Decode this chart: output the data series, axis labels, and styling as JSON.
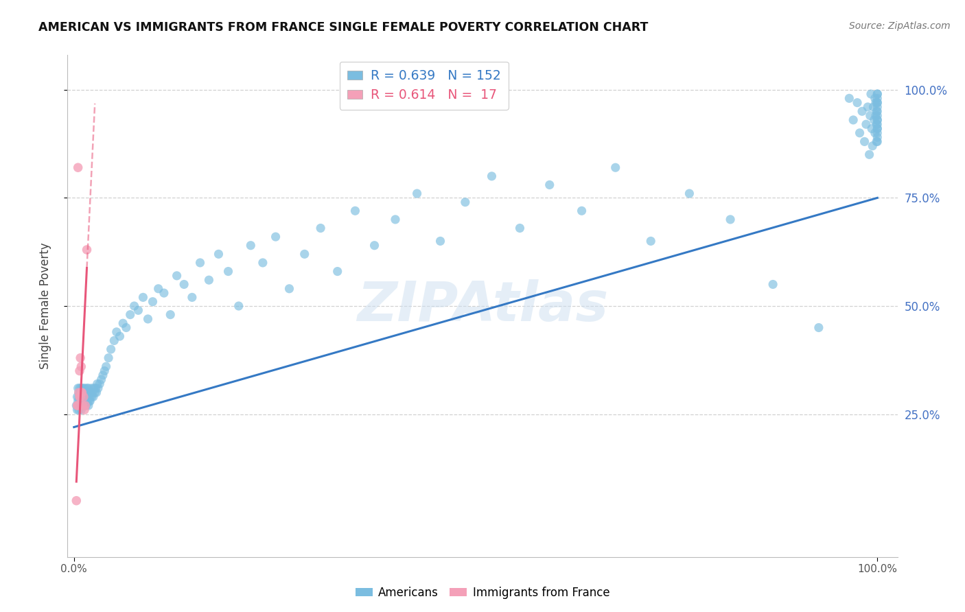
{
  "title": "AMERICAN VS IMMIGRANTS FROM FRANCE SINGLE FEMALE POVERTY CORRELATION CHART",
  "source": "Source: ZipAtlas.com",
  "ylabel": "Single Female Poverty",
  "legend_blue_R": "0.639",
  "legend_blue_N": "152",
  "legend_pink_R": "0.614",
  "legend_pink_N": " 17",
  "blue_color": "#7bbde0",
  "pink_color": "#f4a0b8",
  "blue_line_color": "#3579c4",
  "pink_line_color": "#e8567a",
  "blue_scatter_alpha": 0.65,
  "pink_scatter_alpha": 0.8,
  "marker_size_blue": 90,
  "marker_size_pink": 95,
  "blue_x": [
    0.003,
    0.004,
    0.004,
    0.005,
    0.005,
    0.005,
    0.006,
    0.006,
    0.006,
    0.007,
    0.007,
    0.007,
    0.008,
    0.008,
    0.008,
    0.008,
    0.009,
    0.009,
    0.009,
    0.009,
    0.01,
    0.01,
    0.01,
    0.01,
    0.011,
    0.011,
    0.011,
    0.012,
    0.012,
    0.012,
    0.013,
    0.013,
    0.013,
    0.014,
    0.014,
    0.014,
    0.015,
    0.015,
    0.015,
    0.016,
    0.016,
    0.016,
    0.017,
    0.017,
    0.018,
    0.018,
    0.018,
    0.019,
    0.019,
    0.02,
    0.02,
    0.021,
    0.022,
    0.022,
    0.023,
    0.024,
    0.025,
    0.026,
    0.027,
    0.028,
    0.029,
    0.03,
    0.032,
    0.034,
    0.036,
    0.038,
    0.04,
    0.043,
    0.046,
    0.05,
    0.053,
    0.057,
    0.061,
    0.065,
    0.07,
    0.075,
    0.08,
    0.086,
    0.092,
    0.098,
    0.105,
    0.112,
    0.12,
    0.128,
    0.137,
    0.147,
    0.157,
    0.168,
    0.18,
    0.192,
    0.205,
    0.22,
    0.235,
    0.251,
    0.268,
    0.287,
    0.307,
    0.328,
    0.35,
    0.374,
    0.4,
    0.427,
    0.456,
    0.487,
    0.52,
    0.555,
    0.592,
    0.632,
    0.674,
    0.718,
    0.766,
    0.817,
    0.87,
    0.927,
    0.965,
    0.97,
    0.975,
    0.978,
    0.981,
    0.984,
    0.986,
    0.988,
    0.99,
    0.991,
    0.992,
    0.993,
    0.994,
    0.995,
    0.996,
    0.997,
    0.997,
    0.998,
    0.998,
    0.999,
    0.999,
    0.999,
    1.0,
    1.0,
    1.0,
    1.0,
    1.0,
    1.0,
    1.0,
    1.0,
    1.0,
    1.0,
    1.0,
    1.0,
    1.0,
    1.0,
    1.0,
    1.0
  ],
  "blue_y": [
    0.27,
    0.26,
    0.29,
    0.28,
    0.31,
    0.27,
    0.29,
    0.3,
    0.26,
    0.28,
    0.31,
    0.27,
    0.29,
    0.28,
    0.3,
    0.27,
    0.29,
    0.31,
    0.28,
    0.26,
    0.3,
    0.27,
    0.29,
    0.28,
    0.3,
    0.27,
    0.31,
    0.28,
    0.3,
    0.27,
    0.29,
    0.28,
    0.31,
    0.29,
    0.28,
    0.3,
    0.27,
    0.29,
    0.28,
    0.3,
    0.28,
    0.31,
    0.29,
    0.28,
    0.3,
    0.27,
    0.31,
    0.28,
    0.3,
    0.29,
    0.28,
    0.3,
    0.29,
    0.31,
    0.3,
    0.29,
    0.31,
    0.3,
    0.31,
    0.3,
    0.32,
    0.31,
    0.32,
    0.33,
    0.34,
    0.35,
    0.36,
    0.38,
    0.4,
    0.42,
    0.44,
    0.43,
    0.46,
    0.45,
    0.48,
    0.5,
    0.49,
    0.52,
    0.47,
    0.51,
    0.54,
    0.53,
    0.48,
    0.57,
    0.55,
    0.52,
    0.6,
    0.56,
    0.62,
    0.58,
    0.5,
    0.64,
    0.6,
    0.66,
    0.54,
    0.62,
    0.68,
    0.58,
    0.72,
    0.64,
    0.7,
    0.76,
    0.65,
    0.74,
    0.8,
    0.68,
    0.78,
    0.72,
    0.82,
    0.65,
    0.76,
    0.7,
    0.55,
    0.45,
    0.98,
    0.93,
    0.97,
    0.9,
    0.95,
    0.88,
    0.92,
    0.96,
    0.85,
    0.94,
    0.99,
    0.91,
    0.87,
    0.96,
    0.93,
    0.98,
    0.9,
    0.94,
    0.97,
    0.92,
    0.88,
    0.95,
    0.91,
    0.97,
    0.93,
    0.99,
    0.89,
    0.95,
    0.92,
    0.96,
    0.98,
    0.9,
    0.94,
    0.97,
    0.88,
    0.93,
    0.99,
    0.91
  ],
  "pink_x": [
    0.003,
    0.004,
    0.005,
    0.006,
    0.007,
    0.007,
    0.008,
    0.008,
    0.009,
    0.009,
    0.01,
    0.011,
    0.012,
    0.013,
    0.014,
    0.016,
    0.005
  ],
  "pink_y": [
    0.05,
    0.27,
    0.27,
    0.3,
    0.29,
    0.35,
    0.29,
    0.38,
    0.3,
    0.36,
    0.3,
    0.27,
    0.29,
    0.26,
    0.27,
    0.63,
    0.82
  ],
  "xlim": [
    0.0,
    1.0
  ],
  "ylim": [
    0.0,
    1.05
  ],
  "grid_color": "#cccccc",
  "grid_linestyle": "--",
  "ytick_color": "#4472c4",
  "xtick_color": "#555555",
  "watermark_color": "#cddff0",
  "watermark_alpha": 0.5,
  "background_color": "#ffffff"
}
